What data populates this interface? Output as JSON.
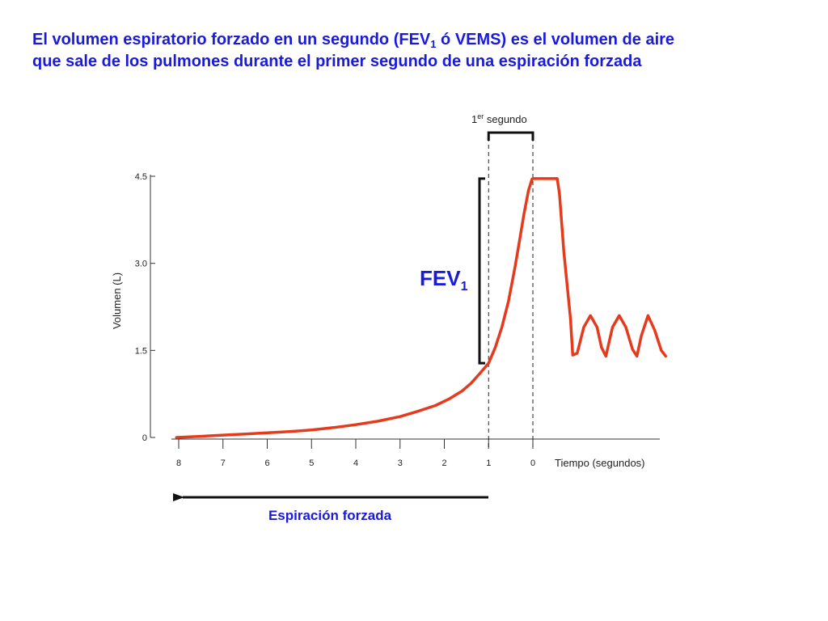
{
  "heading": {
    "line1_before_sub": "El volumen espiratorio forzado en un segundo (FEV",
    "line1_sub": "1",
    "line1_after_sub": " ó VEMS) es el volumen de aire",
    "line2": "que sale de los pulmones durante el primer segundo de una espiración forzada"
  },
  "colors": {
    "heading": "#1a1adb",
    "curve": "#e63a1c",
    "axis": "#333333",
    "arrow": "#111111"
  },
  "annotations": {
    "first_second": {
      "base": "1",
      "sup": "er",
      "rest": " segundo"
    },
    "fev1": {
      "base": "FEV",
      "sub": "1"
    },
    "arrow_label": "Espiración forzada"
  },
  "chart_data": {
    "type": "line",
    "title": "",
    "ylabel": "Volumen (L)",
    "xlabel": "Tiempo (segundos)",
    "ylim": [
      0,
      4.5
    ],
    "yticks": [
      "0",
      "1.5",
      "3.0",
      "4.5"
    ],
    "x_axis_reversed": true,
    "xlim": [
      8.05,
      -3
    ],
    "xticks": [
      "8",
      "7",
      "6",
      "5",
      "4",
      "3",
      "2",
      "1",
      "0"
    ],
    "grid": false,
    "legend": "none",
    "series": [
      {
        "x": [
          8.05,
          7.5,
          7.0,
          6.5,
          6.0,
          5.5,
          5.0,
          4.5,
          4.0,
          3.5,
          3.0,
          2.6,
          2.2,
          1.9,
          1.6,
          1.4,
          1.2,
          1.0,
          0.85,
          0.7,
          0.55,
          0.4,
          0.3,
          0.2,
          0.1,
          0.02,
          0.0,
          -0.1,
          -0.3,
          -0.55,
          -0.6,
          -0.7,
          -0.85,
          -0.9,
          -1.0,
          -1.15,
          -1.3,
          -1.45,
          -1.55,
          -1.65,
          -1.8,
          -1.95,
          -2.1,
          -2.25,
          -2.35,
          -2.45,
          -2.6,
          -2.75,
          -2.9,
          -3.0
        ],
        "y": [
          0.0,
          0.02,
          0.04,
          0.06,
          0.08,
          0.1,
          0.13,
          0.17,
          0.22,
          0.28,
          0.36,
          0.45,
          0.55,
          0.66,
          0.8,
          0.93,
          1.1,
          1.28,
          1.55,
          1.9,
          2.35,
          2.95,
          3.4,
          3.85,
          4.25,
          4.45,
          4.46,
          4.46,
          4.46,
          4.46,
          4.2,
          3.2,
          2.05,
          1.42,
          1.45,
          1.9,
          2.1,
          1.9,
          1.55,
          1.4,
          1.9,
          2.1,
          1.9,
          1.52,
          1.4,
          1.75,
          2.1,
          1.85,
          1.5,
          1.4
        ]
      }
    ]
  }
}
